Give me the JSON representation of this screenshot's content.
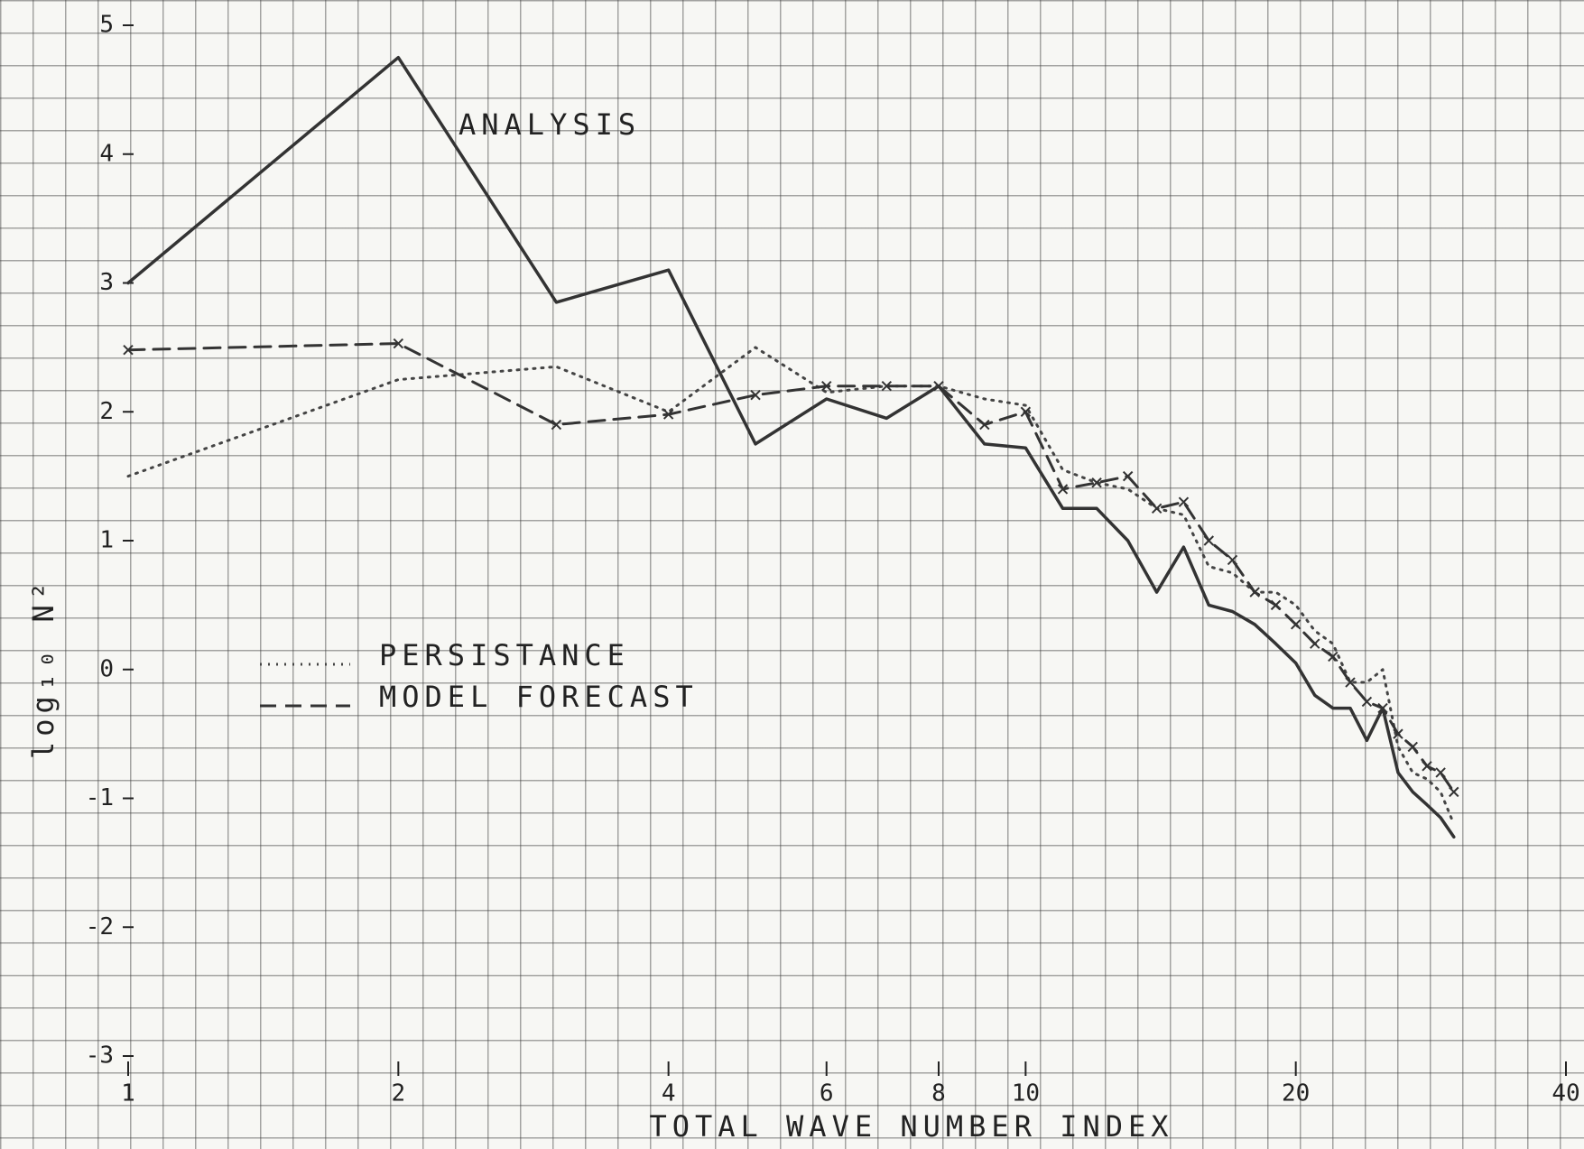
{
  "chart_data": {
    "type": "line",
    "x_label": "TOTAL WAVE NUMBER INDEX",
    "y_label": "log₁₀ N²",
    "log_x": true,
    "xlim": [
      1,
      40
    ],
    "xticks": [
      1,
      2,
      4,
      6,
      8,
      10,
      20,
      40
    ],
    "ylim": [
      -3,
      5
    ],
    "yticks": [
      5,
      4,
      3,
      2,
      1,
      0,
      -1,
      -2,
      -3
    ],
    "x": [
      1,
      2,
      3,
      4,
      5,
      6,
      7,
      8,
      9,
      10,
      11,
      12,
      13,
      14,
      15,
      16,
      17,
      18,
      19,
      20,
      21,
      22,
      23,
      24,
      25,
      26,
      27,
      28,
      29,
      30
    ],
    "series": [
      {
        "name": "ANALYSIS",
        "color": "#333333",
        "style": "solid",
        "marker": "none",
        "values": [
          3,
          4.75,
          2.85,
          3.1,
          1.75,
          2.1,
          1.95,
          2.2,
          1.75,
          1.72,
          1.25,
          1.25,
          1.0,
          0.6,
          0.95,
          0.5,
          0.45,
          0.35,
          0.2,
          0.05,
          -0.2,
          -0.3,
          -0.3,
          -0.55,
          -0.3,
          -0.8,
          -0.95,
          -1.05,
          -1.15,
          -1.3
        ]
      },
      {
        "name": "PERSISTANCE",
        "color": "#444444",
        "style": "dotted",
        "marker": "none",
        "values": [
          1.5,
          2.25,
          2.35,
          2.0,
          2.5,
          2.15,
          2.2,
          2.2,
          2.1,
          2.05,
          1.55,
          1.45,
          1.4,
          1.25,
          1.2,
          0.8,
          0.75,
          0.6,
          0.6,
          0.5,
          0.3,
          0.2,
          -0.1,
          -0.1,
          0.0,
          -0.6,
          -0.8,
          -0.85,
          -0.95,
          -1.2
        ]
      },
      {
        "name": "MODEL FORECAST",
        "color": "#333333",
        "style": "dashed",
        "marker": "x",
        "values": [
          2.48,
          2.53,
          1.9,
          1.98,
          2.13,
          2.2,
          2.2,
          2.2,
          1.9,
          2.0,
          1.4,
          1.45,
          1.5,
          1.25,
          1.3,
          1.0,
          0.85,
          0.6,
          0.5,
          0.35,
          0.2,
          0.1,
          -0.1,
          -0.25,
          -0.3,
          -0.5,
          -0.6,
          -0.75,
          -0.8,
          -0.95
        ]
      }
    ]
  }
}
